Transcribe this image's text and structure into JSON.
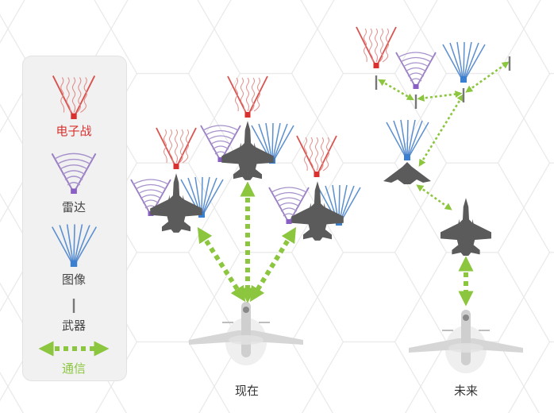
{
  "legend": {
    "items": [
      {
        "label": "电子战",
        "icon": "electronic-warfare-icon",
        "color": "#d8312f"
      },
      {
        "label": "雷达",
        "icon": "radar-icon",
        "color": "#444444"
      },
      {
        "label": "图像",
        "icon": "imaging-icon",
        "color": "#444444"
      },
      {
        "label": "武器",
        "icon": "weapon-icon",
        "color": "#444444"
      },
      {
        "label": "通信",
        "icon": "communication-arrow-icon",
        "color": "#8cc63f"
      }
    ]
  },
  "scenes": {
    "current": {
      "label": "现在"
    },
    "future": {
      "label": "未来"
    }
  },
  "colors": {
    "ew": "#d8534f",
    "radar": "#9b7fc4",
    "imaging": "#5b8fd0",
    "comm": "#8cc63f",
    "aircraft": "#5b5b5b",
    "grid": "#e8e8e8"
  }
}
